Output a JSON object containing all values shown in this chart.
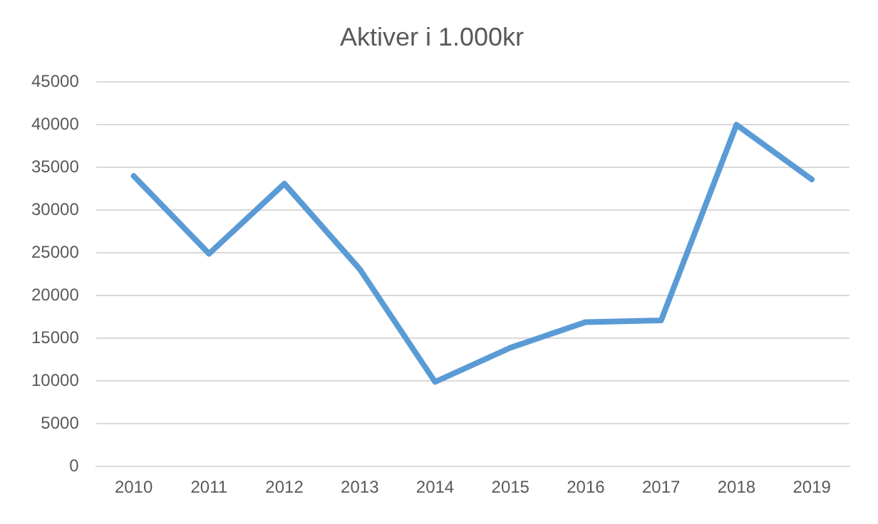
{
  "chart_data": {
    "type": "line",
    "title": "Aktiver i 1.000kr",
    "categories": [
      "2010",
      "2011",
      "2012",
      "2013",
      "2014",
      "2015",
      "2016",
      "2017",
      "2018",
      "2019"
    ],
    "series": [
      {
        "color": "#5b9bd5",
        "values": [
          34000,
          24900,
          33100,
          23100,
          9900,
          13900,
          16900,
          17100,
          40000,
          33600
        ]
      }
    ],
    "ylim": [
      0,
      45000
    ],
    "yticks": [
      0,
      5000,
      10000,
      15000,
      20000,
      25000,
      30000,
      35000,
      40000,
      45000
    ],
    "grid": "y",
    "legend": false,
    "marker": "none",
    "line_style": "solid"
  }
}
